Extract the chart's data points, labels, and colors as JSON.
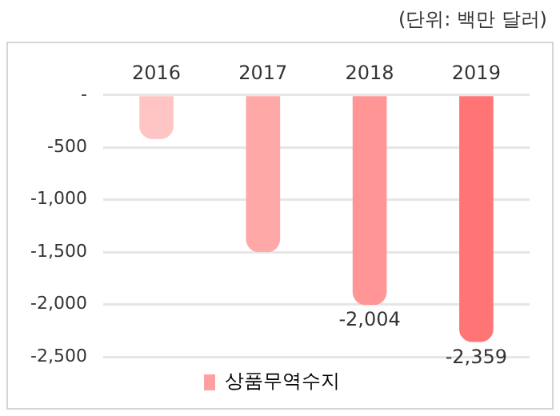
{
  "chart_data": {
    "type": "bar",
    "subtitle": "(단위: 백만 달러)",
    "categories": [
      "2016",
      "2017",
      "2018",
      "2019"
    ],
    "series": [
      {
        "name": "상품무역수지",
        "color": "#ff9f9f",
        "colors": [
          "#ffc4c4",
          "#ffa8a8",
          "#ff9595",
          "#ff7575"
        ],
        "values": [
          -420,
          -1500,
          -2004,
          -2359
        ],
        "value_labels": [
          null,
          null,
          "-2,004",
          "-2,359"
        ]
      }
    ],
    "ylim": [
      -2500,
      0
    ],
    "yticks": [
      {
        "value": 0,
        "label": "-"
      },
      {
        "value": -500,
        "label": "-500"
      },
      {
        "value": -1000,
        "label": "-1,000"
      },
      {
        "value": -1500,
        "label": "-1,500"
      },
      {
        "value": -2000,
        "label": "-2,000"
      },
      {
        "value": -2500,
        "label": "-2,500"
      }
    ],
    "grid": "y",
    "legend": "bottom"
  }
}
